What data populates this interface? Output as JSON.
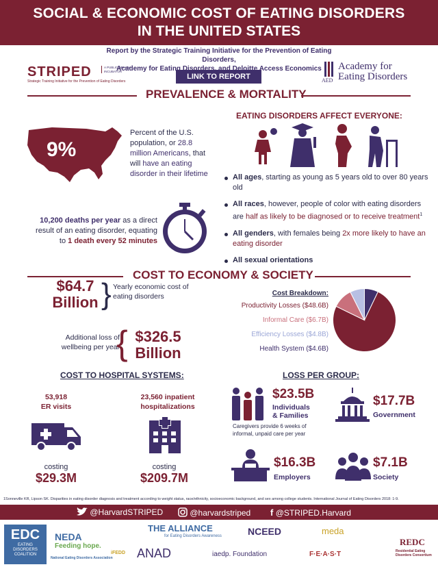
{
  "header": {
    "title_line1": "SOCIAL & ECONOMIC COST OF EATING DISORDERS",
    "title_line2": "IN THE UNITED STATES"
  },
  "report": {
    "line1": "Report by the Strategic Training Initiative for the Prevention of Eating Disorders,",
    "line2": "Academy for Eating Disorders, and Deloitte Access Economics",
    "link_label": "LINK TO REPORT"
  },
  "striped": {
    "name": "STRIPED",
    "badge": "A PUBLIC HEALTH INCUBATOR",
    "tagline": "Strategic Training Initiative for the Prevention of Eating Disorders"
  },
  "aed": {
    "mark": "AED",
    "line1": "Academy for",
    "line2": "Eating Disorders"
  },
  "prevalence": {
    "title": "PREVALENCE & MORTALITY",
    "pct": "9%",
    "pct_text_a": "Percent of the U.S. population, or ",
    "pct_text_b": "28.8 million Americans",
    "pct_text_c": ", that will ",
    "pct_text_d": "have an eating disorder in their lifetime",
    "deaths_a": "10,200 deaths per year",
    "deaths_b": " as a direct result of an eating disorder, equating to ",
    "deaths_c": "1 death every 52 minutes"
  },
  "everyone": {
    "title": "EATING DISORDERS AFFECT EVERYONE:",
    "b1_bold": "All ages",
    "b1_rest": ", starting as young as 5 years old to over 80 years old",
    "b2_bold": "All races",
    "b2_rest": ", however, people of color with eating disorders are ",
    "b2_maroon": "half as likely to be diagnosed or to receive treatment",
    "b2_sup": "1",
    "b3_bold": "All genders",
    "b3_rest": ", with females being ",
    "b3_maroon": "2x more likely to have an eating disorder",
    "b4_bold": "All sexual orientations"
  },
  "economy": {
    "title": "COST TO ECONOMY & SOCIETY",
    "yearly_val1": "$64.7",
    "yearly_val2": "Billion",
    "yearly_text": "Yearly economic cost of eating disorders",
    "addl_text": "Additional loss of wellbeing per year",
    "loss_val1": "$326.5",
    "loss_val2": "Billion",
    "breakdown_title": "Cost Breakdown:",
    "breakdown": [
      {
        "label": "Productivity Losses ($48.6B)",
        "color": "#7b2132"
      },
      {
        "label": "Informal Care ($6.7B)",
        "color": "#c9707c"
      },
      {
        "label": "Efficiency Losses ($4.8B)",
        "color": "#9aa6d6"
      },
      {
        "label": "Health System ($4.6B)",
        "color": "#3f2f6b"
      }
    ]
  },
  "chart_data": {
    "type": "pie",
    "categories": [
      "Productivity Losses",
      "Informal Care",
      "Efficiency Losses",
      "Health System"
    ],
    "values": [
      48.6,
      6.7,
      4.8,
      4.6
    ],
    "colors": [
      "#7b2132",
      "#c9707c",
      "#b8bfe3",
      "#3f2f6b"
    ],
    "title": "Cost Breakdown:"
  },
  "hospital": {
    "title": "COST TO HOSPITAL SYSTEMS:",
    "er_count": "53,918",
    "er_label": "ER visits",
    "inp_count": "23,560 inpatient",
    "inp_label": "hospitalizations",
    "costing": "costing",
    "er_cost": "$29.3M",
    "inp_cost": "$209.7M"
  },
  "groups": {
    "title": "LOSS PER GROUP:",
    "indiv_val": "$23.5B",
    "indiv_label1": "Individuals",
    "indiv_label2": "& Families",
    "caregiver_note": "Caregivers provide 6 weeks of informal, unpaid care per year",
    "gov_val": "$17.7B",
    "gov_label": "Government",
    "emp_val": "$16.3B",
    "emp_label": "Employers",
    "soc_val": "$7.1B",
    "soc_label": "Society"
  },
  "footnote": "1Sonneville KR, Lipson SK. Disparities in eating disorder diagnosis and treatment according to weight status, race/ethnicity, socioeconomic background, and sex among college students. International Journal of Eating Disorders 2018: 1-9.",
  "social": {
    "twitter": "@HarvardSTRIPED",
    "instagram": "@harvardstriped",
    "facebook": "@STRIPED.Harvard"
  },
  "partners": {
    "edc1": "EDC",
    "edc2": "EATING DISORDERS COALITION",
    "neda1": "NEDA",
    "neda2": "Feeding hope.",
    "neda3": "National Eating Disorders Association",
    "ifedd": "iFEDD",
    "alliance1": "THE ALLIANCE",
    "alliance2": "for Eating Disorders Awareness",
    "anad": "ANAD",
    "nceed": "NCEED",
    "iaedp": "iaedp. Foundation",
    "feast": "F·E·A·S·T",
    "meda": "meda",
    "redc1": "REDC",
    "redc2": "Residential Eating Disorders Consortium"
  }
}
